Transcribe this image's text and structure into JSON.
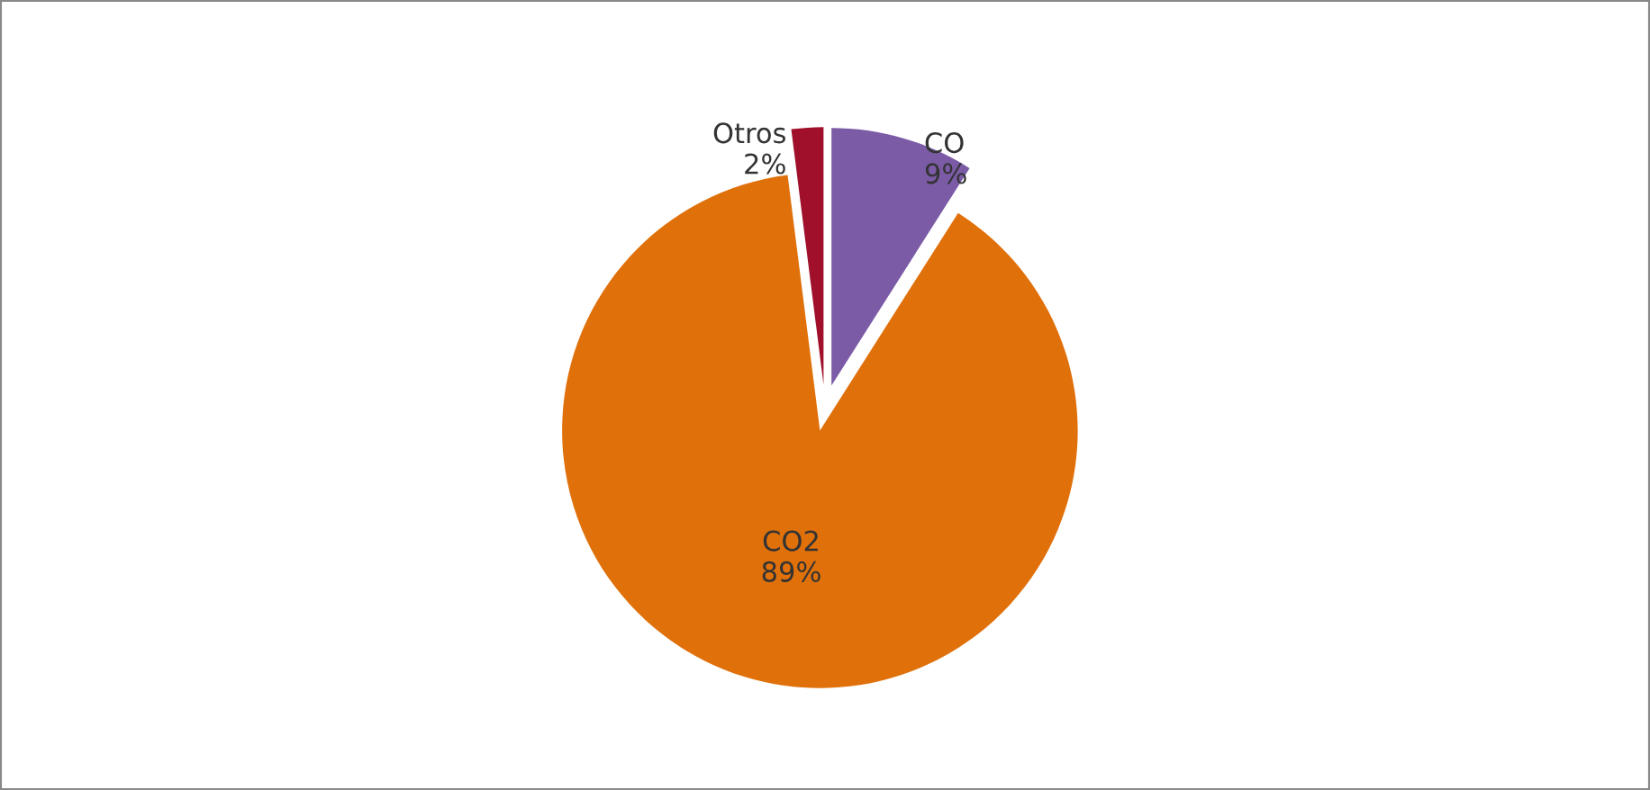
{
  "chart_data": {
    "type": "pie",
    "categories": [
      "CO",
      "CO2",
      "Otros"
    ],
    "values": [
      9,
      89,
      2
    ],
    "value_labels": [
      "9%",
      "89%",
      "2%"
    ],
    "colors": [
      "#7b5ba6",
      "#e0700a",
      "#a0102a"
    ]
  }
}
